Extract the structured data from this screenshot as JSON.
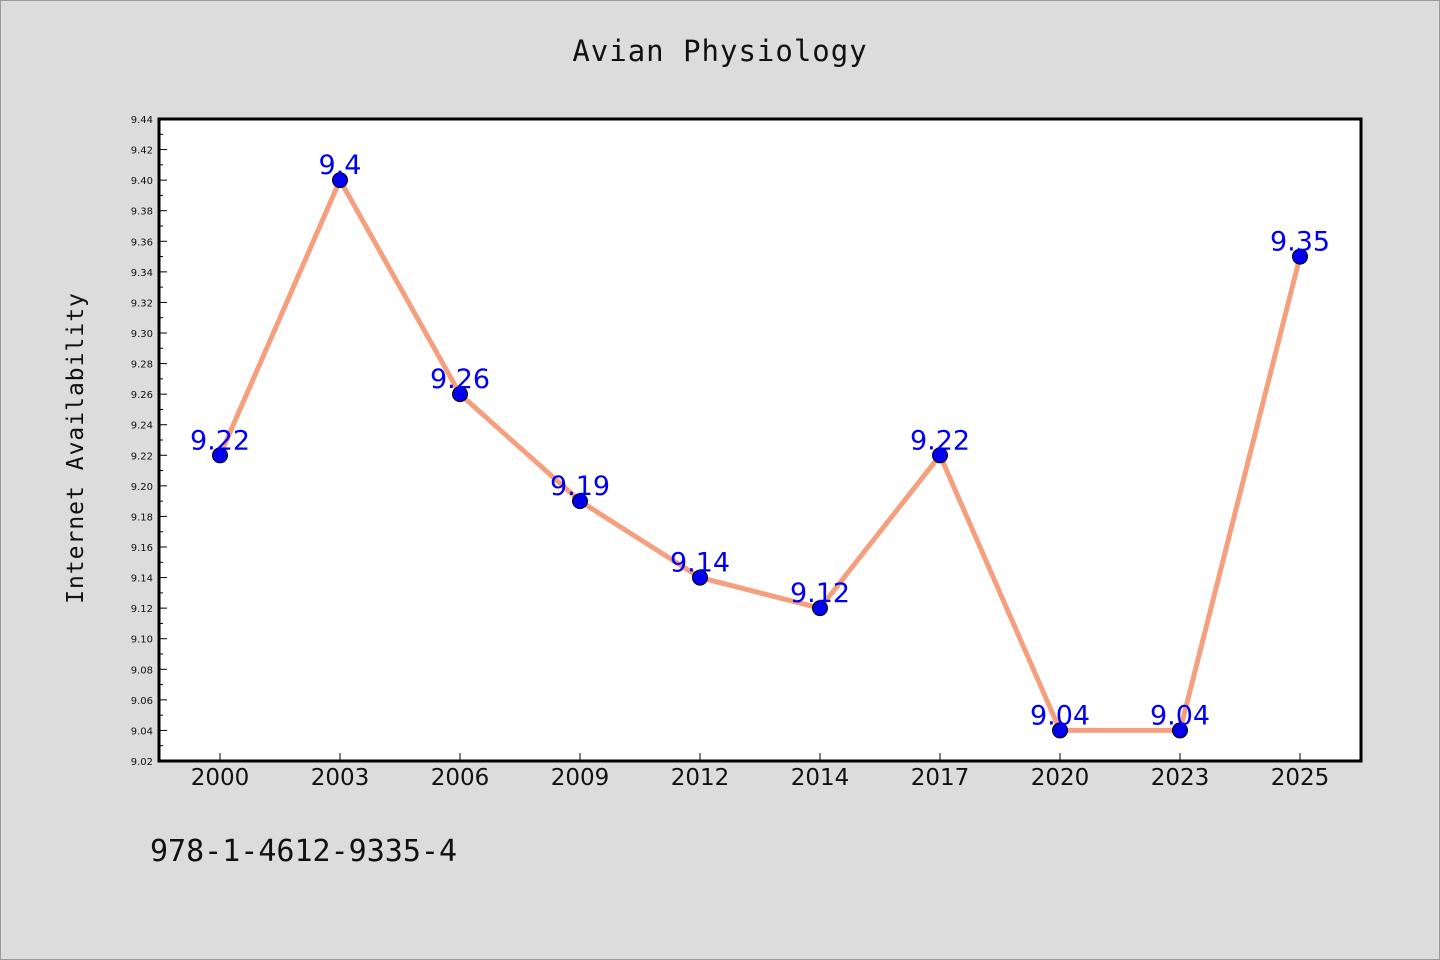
{
  "chart_data": {
    "type": "line",
    "title": "Avian Physiology",
    "xlabel": "",
    "ylabel": "Internet Availability",
    "categories": [
      "2000",
      "2003",
      "2006",
      "2009",
      "2012",
      "2014",
      "2017",
      "2020",
      "2023",
      "2025"
    ],
    "series": [
      {
        "values": [
          9.22,
          9.4,
          9.26,
          9.19,
          9.14,
          9.12,
          9.22,
          9.04,
          9.04,
          9.35
        ],
        "data_labels": [
          "9.22",
          "9.4",
          "9.26",
          "9.19",
          "9.14",
          "9.12",
          "9.22",
          "9.04",
          "9.04",
          "9.35"
        ],
        "line_color": "#f4a07e",
        "marker_color": "#0000ee",
        "label_color": "#0000ee"
      }
    ],
    "ylim": [
      9.02,
      9.44
    ],
    "yticks": [
      "9.02",
      "9.04",
      "9.06",
      "9.08",
      "9.10",
      "9.12",
      "9.14",
      "9.16",
      "9.18",
      "9.20",
      "9.22",
      "9.24",
      "9.26",
      "9.28",
      "9.30",
      "9.32",
      "9.34",
      "9.36",
      "9.38",
      "9.40",
      "9.42",
      "9.44"
    ],
    "grid": false,
    "legend": "none"
  },
  "footer": {
    "code": "978-1-4612-9335-4"
  },
  "colors": {
    "background": "#dcdcdc",
    "plot_area": "#ffffff"
  }
}
